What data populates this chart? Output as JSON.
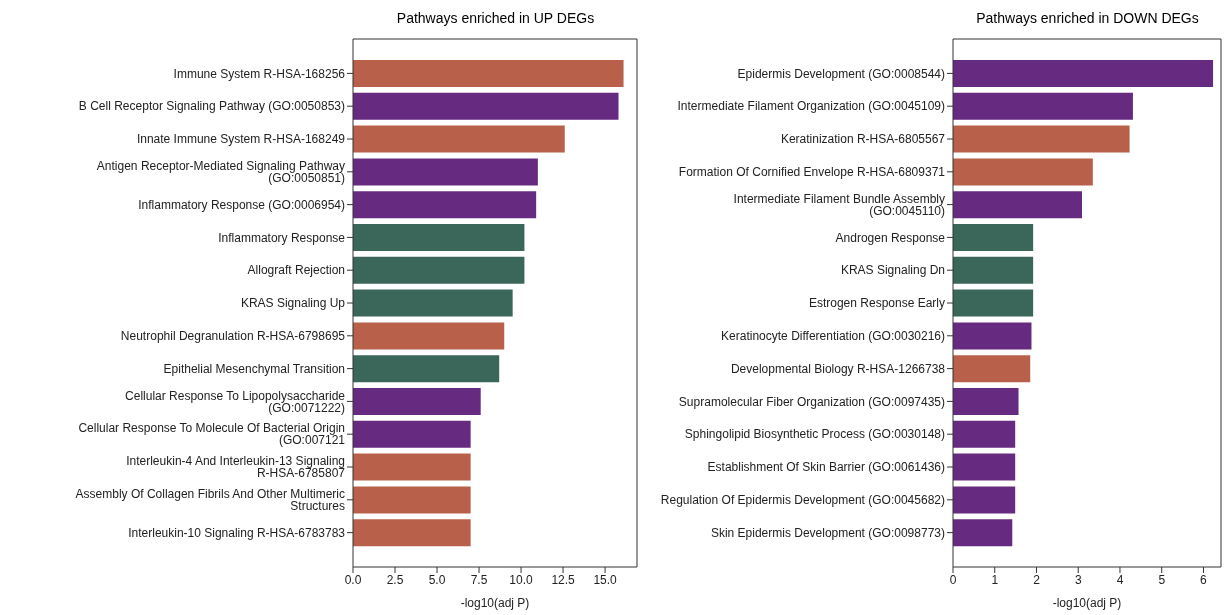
{
  "chart_data": [
    {
      "type": "bar",
      "orientation": "horizontal",
      "title": "Pathways enriched in UP DEGs",
      "xlabel": "-log10(adj P)",
      "categories": [
        "Immune System R-HSA-168256",
        "B Cell Receptor Signaling Pathway (GO:0050853)",
        "Innate Immune System R-HSA-168249",
        "Antigen Receptor-Mediated Signaling Pathway (GO:0050851)",
        "Inflammatory Response (GO:0006954)",
        "Inflammatory Response",
        "Allograft Rejection",
        "KRAS Signaling Up",
        "Neutrophil Degranulation R-HSA-6798695",
        "Epithelial Mesenchymal Transition",
        "Cellular Response To Lipopolysaccharide (GO:0071222)",
        "Cellular Response To Molecule Of Bacterial Origin (GO:007121",
        "Interleukin-4 And Interleukin-13 Signaling R-HSA-6785807",
        "Assembly Of Collagen Fibrils And Other Multimeric Structures",
        "Interleukin-10 Signaling R-HSA-6783783"
      ],
      "values": [
        16.1,
        15.8,
        12.6,
        11.0,
        10.9,
        10.2,
        10.2,
        9.5,
        9.0,
        8.7,
        7.6,
        7.0,
        7.0,
        7.0,
        7.0
      ],
      "colors": [
        "#b9604b",
        "#662a80",
        "#b9604b",
        "#662a80",
        "#662a80",
        "#3b665a",
        "#3b665a",
        "#3b665a",
        "#b9604b",
        "#3b665a",
        "#662a80",
        "#662a80",
        "#b9604b",
        "#b9604b",
        "#b9604b"
      ],
      "xlim": [
        0,
        16.9
      ],
      "xticks": [
        {
          "value": 0,
          "label": "0.0"
        },
        {
          "value": 2.5,
          "label": "2.5"
        },
        {
          "value": 5,
          "label": "5.0"
        },
        {
          "value": 7.5,
          "label": "7.5"
        },
        {
          "value": 10,
          "label": "10.0"
        },
        {
          "value": 12.5,
          "label": "12.5"
        },
        {
          "value": 15,
          "label": "15.0"
        }
      ],
      "grid": false,
      "legend": false
    },
    {
      "type": "bar",
      "orientation": "horizontal",
      "title": "Pathways enriched in DOWN DEGs",
      "xlabel": "-log10(adj P)",
      "categories": [
        "Epidermis Development (GO:0008544)",
        "Intermediate Filament Organization (GO:0045109)",
        "Keratinization R-HSA-6805567",
        "Formation Of Cornified Envelope R-HSA-6809371",
        "Intermediate Filament Bundle Assembly (GO:0045110)",
        "Androgen Response",
        "KRAS Signaling Dn",
        "Estrogen Response Early",
        "Keratinocyte Differentiation (GO:0030216)",
        "Developmental Biology R-HSA-1266738",
        "Supramolecular Fiber Organization (GO:0097435)",
        "Sphingolipid Biosynthetic Process (GO:0030148)",
        "Establishment Of Skin Barrier (GO:0061436)",
        "Regulation Of Epidermis Development (GO:0045682)",
        "Skin Epidermis Development (GO:0098773)"
      ],
      "values": [
        6.23,
        4.31,
        4.23,
        3.35,
        3.09,
        1.92,
        1.92,
        1.92,
        1.88,
        1.85,
        1.57,
        1.49,
        1.49,
        1.49,
        1.42
      ],
      "colors": [
        "#662a80",
        "#662a80",
        "#b9604b",
        "#b9604b",
        "#662a80",
        "#3b665a",
        "#3b665a",
        "#3b665a",
        "#662a80",
        "#b9604b",
        "#662a80",
        "#662a80",
        "#662a80",
        "#662a80",
        "#662a80"
      ],
      "xlim": [
        0,
        6.42
      ],
      "xticks": [
        0,
        1,
        2,
        3,
        4,
        5,
        6
      ],
      "grid": false,
      "legend": false
    }
  ]
}
